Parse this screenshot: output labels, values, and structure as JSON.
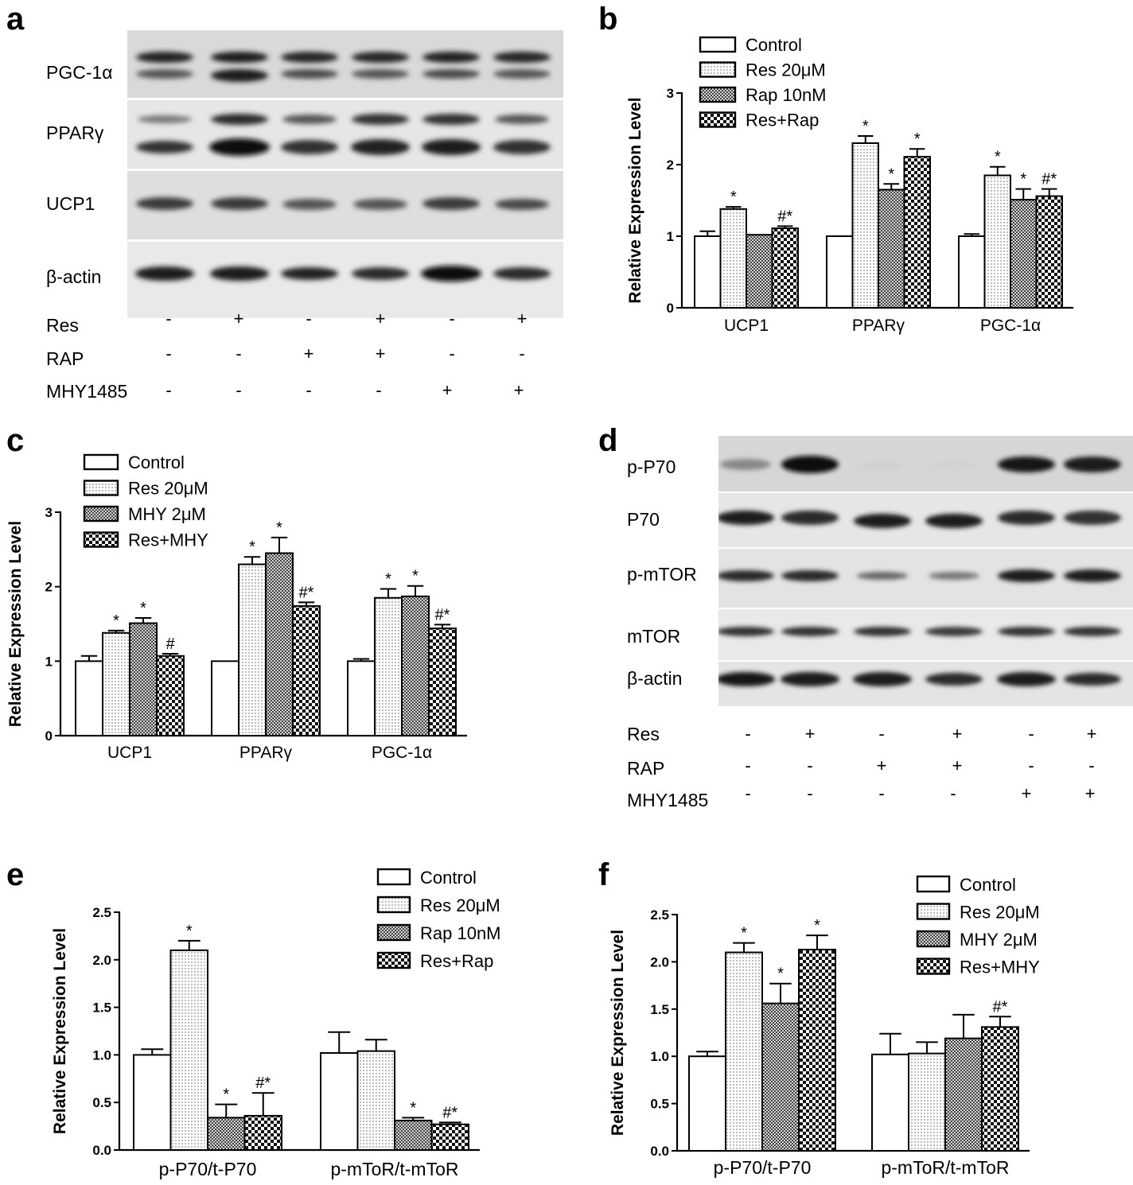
{
  "panels": {
    "a": {
      "letter": "a",
      "bands": [
        "PGC-1α",
        "PPARγ",
        "UCP1",
        "β-actin"
      ],
      "treatments": [
        {
          "name": "Res",
          "signs": [
            "-",
            "+",
            "-",
            "+",
            "-",
            "+"
          ]
        },
        {
          "name": "RAP",
          "signs": [
            "-",
            "-",
            "+",
            "+",
            "-",
            "-"
          ]
        },
        {
          "name": "MHY1485",
          "signs": [
            "-",
            "-",
            "-",
            "-",
            "+",
            "+"
          ]
        }
      ]
    },
    "d": {
      "letter": "d",
      "bands": [
        "p-P70",
        "P70",
        "p-mTOR",
        "mTOR",
        "β-actin"
      ],
      "treatments": [
        {
          "name": "Res",
          "signs": [
            "-",
            "+",
            "-",
            "+",
            "-",
            "+"
          ]
        },
        {
          "name": "RAP",
          "signs": [
            "-",
            "-",
            "+",
            "+",
            "-",
            "-"
          ]
        },
        {
          "name": "MHY1485",
          "signs": [
            "-",
            "-",
            "-",
            "-",
            "+",
            "+"
          ]
        }
      ]
    },
    "b": {
      "letter": "b"
    },
    "c": {
      "letter": "c"
    },
    "e": {
      "letter": "e"
    },
    "f": {
      "letter": "f"
    }
  },
  "chart_data": [
    {
      "id": "b",
      "type": "bar",
      "ylabel": "Relative Expression Level",
      "ylim": [
        0,
        3
      ],
      "yticks": [
        "0",
        "1",
        "2",
        "3"
      ],
      "categories": [
        "UCP1",
        "PPARγ",
        "PGC-1α"
      ],
      "legend": "top-left",
      "series": [
        {
          "name": "Control",
          "pattern": "white",
          "values": [
            1.0,
            1.0,
            1.0
          ],
          "errors": [
            0.07,
            0.0,
            0.03
          ],
          "marks": [
            "",
            "",
            ""
          ]
        },
        {
          "name": "Res 20μM",
          "pattern": "dots",
          "values": [
            1.38,
            2.3,
            1.85
          ],
          "errors": [
            0.03,
            0.1,
            0.12
          ],
          "marks": [
            "*",
            "*",
            "*"
          ]
        },
        {
          "name": "Rap 10nM",
          "pattern": "fine",
          "values": [
            1.02,
            1.65,
            1.51
          ],
          "errors": [
            0.0,
            0.08,
            0.15
          ],
          "marks": [
            "",
            "*",
            "*"
          ]
        },
        {
          "name": "Res+Rap",
          "pattern": "checker",
          "values": [
            1.11,
            2.11,
            1.56
          ],
          "errors": [
            0.03,
            0.11,
            0.1
          ],
          "marks": [
            "#*",
            "*",
            "#*"
          ]
        }
      ]
    },
    {
      "id": "c",
      "type": "bar",
      "ylabel": "Relative Expression Level",
      "ylim": [
        0,
        3
      ],
      "yticks": [
        "0",
        "1",
        "2",
        "3"
      ],
      "categories": [
        "UCP1",
        "PPARγ",
        "PGC-1α"
      ],
      "legend": "top-left",
      "series": [
        {
          "name": "Control",
          "pattern": "white",
          "values": [
            1.0,
            1.0,
            1.0
          ],
          "errors": [
            0.07,
            0.0,
            0.03
          ],
          "marks": [
            "",
            "",
            ""
          ]
        },
        {
          "name": "Res 20μM",
          "pattern": "dots",
          "values": [
            1.38,
            2.3,
            1.85
          ],
          "errors": [
            0.03,
            0.1,
            0.12
          ],
          "marks": [
            "*",
            "*",
            "*"
          ]
        },
        {
          "name": "MHY 2μM",
          "pattern": "fine",
          "values": [
            1.51,
            2.45,
            1.87
          ],
          "errors": [
            0.07,
            0.21,
            0.14
          ],
          "marks": [
            "*",
            "*",
            "*"
          ]
        },
        {
          "name": "Res+MHY",
          "pattern": "checker",
          "values": [
            1.07,
            1.74,
            1.44
          ],
          "errors": [
            0.03,
            0.05,
            0.05
          ],
          "marks": [
            "#",
            "#*",
            "#*"
          ]
        }
      ]
    },
    {
      "id": "e",
      "type": "bar",
      "ylabel": "Relative Expression Level",
      "ylim": [
        0,
        2.5
      ],
      "yticks": [
        "0.0",
        "0.5",
        "1.0",
        "1.5",
        "2.0",
        "2.5"
      ],
      "categories": [
        "p-P70/t-P70",
        "p-mToR/t-mToR"
      ],
      "legend": "top-right",
      "series": [
        {
          "name": "Control",
          "pattern": "white",
          "values": [
            1.0,
            1.02
          ],
          "errors": [
            0.06,
            0.22
          ],
          "marks": [
            "",
            ""
          ]
        },
        {
          "name": "Res 20μM",
          "pattern": "dots",
          "values": [
            2.1,
            1.04
          ],
          "errors": [
            0.1,
            0.12
          ],
          "marks": [
            "*",
            ""
          ]
        },
        {
          "name": "Rap 10nM",
          "pattern": "fine",
          "values": [
            0.34,
            0.31
          ],
          "errors": [
            0.14,
            0.03
          ],
          "marks": [
            "*",
            "*"
          ]
        },
        {
          "name": "Res+Rap",
          "pattern": "checker",
          "values": [
            0.36,
            0.27
          ],
          "errors": [
            0.24,
            0.02
          ],
          "marks": [
            "#*",
            "#*"
          ]
        }
      ]
    },
    {
      "id": "f",
      "type": "bar",
      "ylabel": "Relative Expression Level",
      "ylim": [
        0,
        2.5
      ],
      "yticks": [
        "0.0",
        "0.5",
        "1.0",
        "1.5",
        "2.0",
        "2.5"
      ],
      "categories": [
        "p-P70/t-P70",
        "p-mToR/t-mToR"
      ],
      "legend": "top-right",
      "series": [
        {
          "name": "Control",
          "pattern": "white",
          "values": [
            1.0,
            1.02
          ],
          "errors": [
            0.05,
            0.22
          ],
          "marks": [
            "",
            ""
          ]
        },
        {
          "name": "Res 20μM",
          "pattern": "dots",
          "values": [
            2.1,
            1.03
          ],
          "errors": [
            0.1,
            0.12
          ],
          "marks": [
            "*",
            ""
          ]
        },
        {
          "name": "MHY 2μM",
          "pattern": "fine",
          "values": [
            1.56,
            1.19
          ],
          "errors": [
            0.21,
            0.25
          ],
          "marks": [
            "*",
            ""
          ]
        },
        {
          "name": "Res+MHY",
          "pattern": "checker",
          "values": [
            2.13,
            1.31
          ],
          "errors": [
            0.15,
            0.11
          ],
          "marks": [
            "*",
            "#*"
          ]
        }
      ]
    }
  ]
}
